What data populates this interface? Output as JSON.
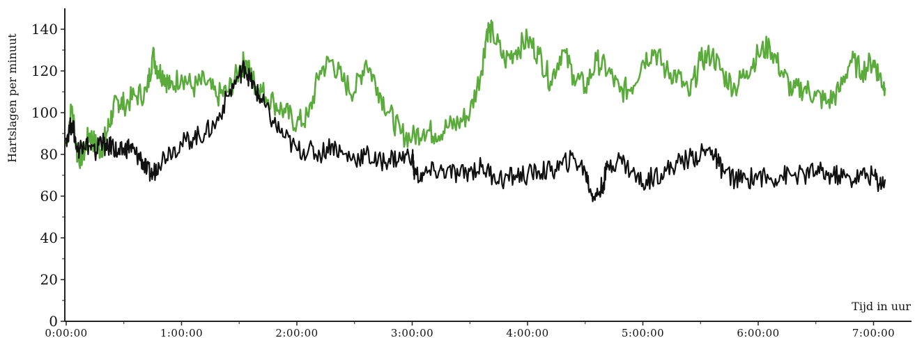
{
  "chart_data": {
    "type": "line",
    "xlabel": "Tijd in uur",
    "ylabel": "Hartslagen per minuut",
    "xlim": [
      0,
      7.3
    ],
    "ylim": [
      0,
      150
    ],
    "xticks": [
      0,
      1,
      2,
      3,
      4,
      5,
      6,
      7
    ],
    "xtick_labels": [
      "0:00:00",
      "1:00:00",
      "2:00:00",
      "3:00:00",
      "4:00:00",
      "5:00:00",
      "6:00:00",
      "7:00:00"
    ],
    "yticks": [
      0,
      20,
      40,
      60,
      80,
      100,
      120,
      140
    ],
    "ytick_labels": [
      "0",
      "20",
      "40",
      "60",
      "80",
      "100",
      "120",
      "140"
    ],
    "grid": false,
    "legend": "none",
    "colors": {
      "series_green": "#5aab3c",
      "series_black": "#111111",
      "axis": "#222222"
    },
    "series": [
      {
        "color": "#5aab3c",
        "x": [
          0.0,
          0.05,
          0.1,
          0.15,
          0.2,
          0.25,
          0.3,
          0.35,
          0.4,
          0.45,
          0.5,
          0.6,
          0.7,
          0.75,
          0.8,
          0.85,
          0.9,
          1.0,
          1.1,
          1.2,
          1.3,
          1.4,
          1.5,
          1.55,
          1.6,
          1.65,
          1.7,
          1.8,
          1.9,
          2.0,
          2.1,
          2.2,
          2.3,
          2.4,
          2.5,
          2.6,
          2.7,
          2.8,
          2.9,
          3.0,
          3.1,
          3.2,
          3.3,
          3.4,
          3.5,
          3.6,
          3.65,
          3.7,
          3.8,
          3.9,
          4.0,
          4.1,
          4.2,
          4.3,
          4.4,
          4.5,
          4.6,
          4.7,
          4.8,
          4.9,
          5.0,
          5.1,
          5.2,
          5.3,
          5.4,
          5.5,
          5.6,
          5.7,
          5.8,
          5.9,
          6.0,
          6.1,
          6.2,
          6.3,
          6.4,
          6.5,
          6.6,
          6.7,
          6.8,
          6.9,
          7.0,
          7.05,
          7.1
        ],
        "y": [
          85,
          103,
          78,
          80,
          90,
          85,
          82,
          90,
          100,
          106,
          104,
          108,
          110,
          128,
          120,
          118,
          112,
          118,
          112,
          115,
          108,
          110,
          120,
          125,
          118,
          112,
          110,
          105,
          100,
          95,
          98,
          120,
          125,
          115,
          110,
          125,
          112,
          100,
          90,
          88,
          92,
          90,
          93,
          95,
          100,
          120,
          140,
          138,
          125,
          130,
          135,
          128,
          115,
          130,
          118,
          112,
          125,
          120,
          110,
          112,
          125,
          130,
          120,
          118,
          108,
          125,
          128,
          118,
          112,
          120,
          128,
          132,
          120,
          110,
          112,
          108,
          105,
          110,
          125,
          120,
          125,
          118,
          112
        ]
      },
      {
        "color": "#111111",
        "x": [
          0.0,
          0.05,
          0.1,
          0.15,
          0.2,
          0.25,
          0.3,
          0.35,
          0.4,
          0.45,
          0.5,
          0.55,
          0.6,
          0.65,
          0.7,
          0.75,
          0.8,
          0.9,
          1.0,
          1.1,
          1.2,
          1.3,
          1.4,
          1.5,
          1.55,
          1.6,
          1.65,
          1.7,
          1.8,
          1.9,
          2.0,
          2.1,
          2.2,
          2.3,
          2.4,
          2.5,
          2.6,
          2.7,
          2.8,
          2.9,
          3.0,
          3.02,
          3.1,
          3.2,
          3.3,
          3.4,
          3.5,
          3.6,
          3.7,
          3.8,
          3.9,
          4.0,
          4.1,
          4.2,
          4.3,
          4.4,
          4.5,
          4.55,
          4.6,
          4.65,
          4.7,
          4.8,
          4.9,
          5.0,
          5.1,
          5.2,
          5.3,
          5.4,
          5.5,
          5.6,
          5.65,
          5.7,
          5.8,
          5.9,
          6.0,
          6.1,
          6.2,
          6.3,
          6.4,
          6.5,
          6.6,
          6.7,
          6.8,
          6.9,
          7.0,
          7.05,
          7.1
        ],
        "y": [
          88,
          95,
          82,
          86,
          84,
          80,
          88,
          82,
          85,
          80,
          82,
          84,
          80,
          78,
          72,
          70,
          76,
          82,
          85,
          88,
          90,
          95,
          108,
          118,
          122,
          115,
          110,
          105,
          95,
          88,
          82,
          82,
          80,
          85,
          80,
          78,
          80,
          76,
          78,
          78,
          80,
          70,
          70,
          72,
          72,
          70,
          72,
          74,
          70,
          68,
          70,
          70,
          72,
          72,
          75,
          78,
          72,
          62,
          60,
          65,
          75,
          78,
          72,
          66,
          70,
          72,
          76,
          78,
          80,
          82,
          76,
          72,
          68,
          68,
          70,
          68,
          70,
          70,
          70,
          72,
          70,
          70,
          68,
          70,
          70,
          66,
          68
        ]
      }
    ]
  }
}
